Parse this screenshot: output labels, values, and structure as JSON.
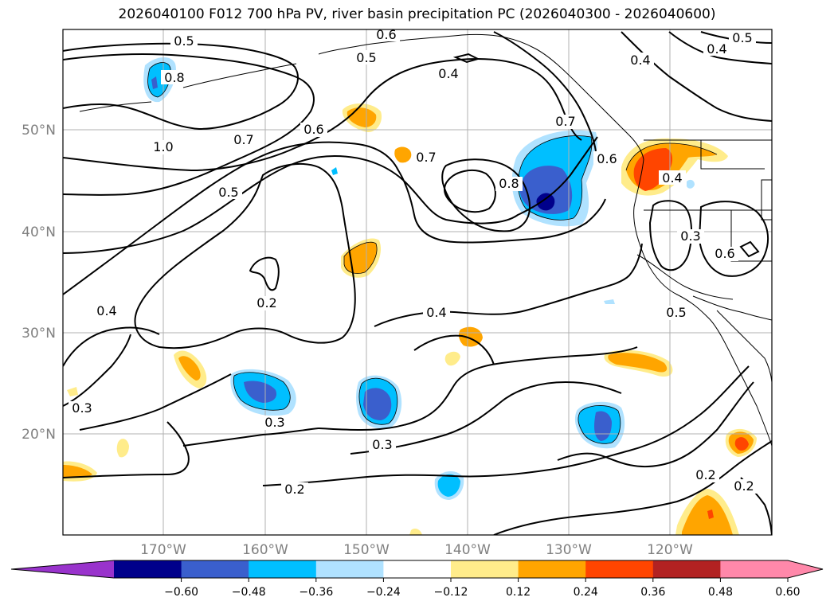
{
  "title": "2026040100 F012 700 hPa PV, river basin precipitation PC (2026040300 - 2026040600)",
  "latitude_labels": [
    "50°N",
    "40°N",
    "30°N",
    "20°N"
  ],
  "longitude_labels": [
    "170°W",
    "160°W",
    "150°W",
    "140°W",
    "130°W",
    "120°W"
  ],
  "contour_labels": [
    "0.5",
    "0.6",
    "0.5",
    "0.4",
    "0.8",
    "0.4",
    "0.5",
    "0.4",
    "1.0",
    "0.7",
    "0.6",
    "0.7",
    "0.7",
    "0.6",
    "0.8",
    "0.5",
    "0.4",
    "0.3",
    "0.6",
    "0.2",
    "0.4",
    "0.4",
    "0.5",
    "0.3",
    "0.3",
    "0.3",
    "0.2",
    "0.2",
    "0.2"
  ],
  "colorbar": {
    "tick_labels": [
      "−0.60",
      "−0.48",
      "−0.36",
      "−0.24",
      "−0.12",
      "0.12",
      "0.24",
      "0.36",
      "0.48",
      "0.60"
    ],
    "colors": {
      "under": "#9933cc",
      "levels": [
        "#00008b",
        "#3a5fcd",
        "#00bfff",
        "#b0e2ff",
        "#ffffff",
        "#ffec8b",
        "#ffa500",
        "#ff4500",
        "#b22222",
        "#ff88aa"
      ]
    }
  }
}
